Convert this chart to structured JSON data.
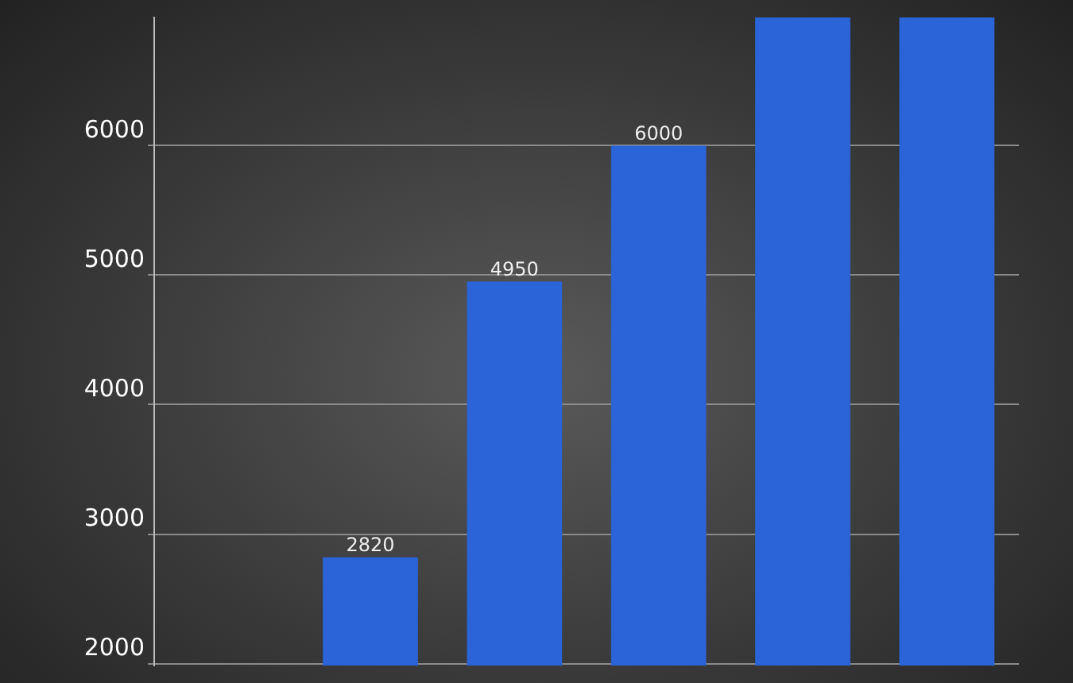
{
  "chart_data": {
    "type": "bar",
    "categories": [
      null,
      null,
      null,
      null,
      null,
      null
    ],
    "values": [
      null,
      2820,
      4950,
      6000,
      6990,
      6990
    ],
    "value_labels": [
      null,
      "2820",
      "4950",
      "6000",
      null,
      null
    ],
    "color": "#2a64d8",
    "ylim": [
      1985,
      6990
    ],
    "yticks": [
      2000,
      3000,
      4000,
      5000,
      6000
    ],
    "grid": "y",
    "tick_labels": "y",
    "legend": false
  }
}
